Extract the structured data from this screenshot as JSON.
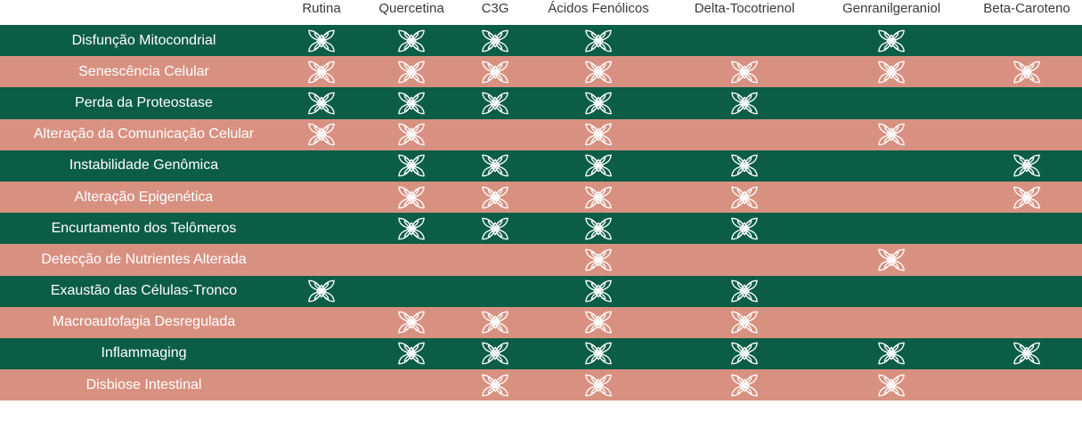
{
  "columns": [
    "Rutina",
    "Quercetina",
    "C3G",
    "Ácidos Fenólicos",
    "Delta-Tocotrienol",
    "Genranilgeraniol",
    "Beta-Caroteno"
  ],
  "rows": [
    {
      "label": "Disfunção Mitocondrial",
      "marks": [
        1,
        1,
        1,
        1,
        0,
        1,
        0
      ]
    },
    {
      "label": "Senescência Celular",
      "marks": [
        1,
        1,
        1,
        1,
        1,
        1,
        1
      ]
    },
    {
      "label": "Perda da Proteostase",
      "marks": [
        1,
        1,
        1,
        1,
        1,
        0,
        0
      ]
    },
    {
      "label": "Alteração da Comunicação Celular",
      "marks": [
        1,
        1,
        0,
        1,
        0,
        1,
        0
      ]
    },
    {
      "label": "Instabilidade Genômica",
      "marks": [
        0,
        1,
        1,
        1,
        1,
        0,
        1
      ]
    },
    {
      "label": "Alteração Epigenética",
      "marks": [
        0,
        1,
        1,
        1,
        1,
        0,
        1
      ]
    },
    {
      "label": "Encurtamento dos Telômeros",
      "marks": [
        0,
        1,
        1,
        1,
        1,
        0,
        0
      ]
    },
    {
      "label": "Detecção de Nutrientes Alterada",
      "marks": [
        0,
        0,
        0,
        1,
        0,
        1,
        0
      ]
    },
    {
      "label": "Exaustão das Células-Tronco",
      "marks": [
        1,
        0,
        0,
        1,
        1,
        0,
        0
      ]
    },
    {
      "label": "Macroautofagia Desregulada",
      "marks": [
        0,
        1,
        1,
        1,
        1,
        0,
        0
      ]
    },
    {
      "label": "Inflammaging",
      "marks": [
        0,
        1,
        1,
        1,
        1,
        1,
        1
      ]
    },
    {
      "label": "Disbiose Intestinal",
      "marks": [
        0,
        0,
        1,
        1,
        1,
        1,
        0
      ]
    }
  ],
  "mark_icon": "flower-icon",
  "colors": {
    "dark_row": "#0b5d46",
    "light_row": "#d89181",
    "icon": "#ffffff",
    "header_text": "#3a3a3a"
  }
}
